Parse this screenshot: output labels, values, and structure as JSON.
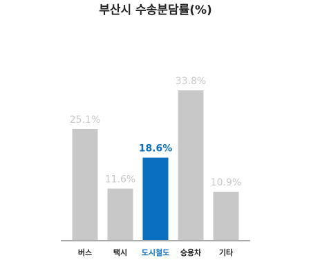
{
  "chart_data": {
    "type": "bar",
    "title": "부산시 수송분담률(%)",
    "categories": [
      "버스",
      "택시",
      "도시철도",
      "승용차",
      "기타"
    ],
    "values": [
      25.1,
      11.6,
      18.6,
      33.8,
      10.9
    ],
    "value_labels": [
      "25.1%",
      "11.6%",
      "18.6%",
      "33.8%",
      "10.9%"
    ],
    "colors": [
      "#c8c8c8",
      "#c8c8c8",
      "#0a6fbf",
      "#c8c8c8",
      "#c8c8c8"
    ],
    "category_colors": [
      "#222222",
      "#222222",
      "#0a6fbf",
      "#222222",
      "#222222"
    ]
  }
}
